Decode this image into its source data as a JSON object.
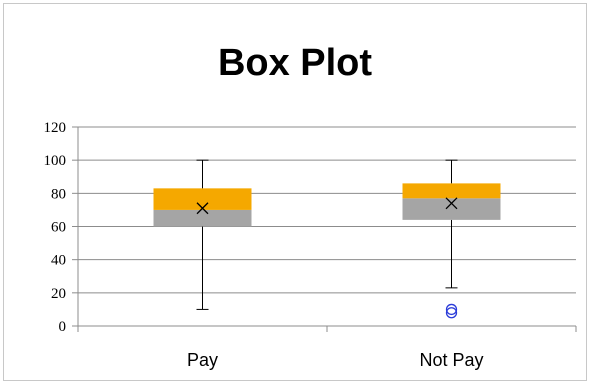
{
  "chart_data": {
    "type": "box",
    "title": "Box Plot",
    "xlabel": "",
    "ylabel": "",
    "ylim": [
      0,
      120
    ],
    "y_ticks": [
      "0",
      "20",
      "40",
      "60",
      "80",
      "100",
      "120"
    ],
    "grid": true,
    "legend": "none",
    "categories": [
      "Pay",
      "Not Pay"
    ],
    "boxes": [
      {
        "category": "Pay",
        "min": 10,
        "q1": 60,
        "median": 70,
        "q3": 83,
        "max": 100,
        "mean": 71,
        "outliers": []
      },
      {
        "category": "Not Pay",
        "min": 23,
        "q1": 64,
        "median": 77,
        "q3": 86,
        "max": 100,
        "mean": 74,
        "outliers": [
          10,
          8
        ]
      }
    ],
    "colors": {
      "lower_box": "#a5a5a5",
      "upper_box": "#f5a800",
      "whisker": "#000000",
      "mean_marker": "#000000",
      "outlier": "#2b3cd9",
      "grid": "#8c8c8c"
    },
    "mean_marker_symbol": "×",
    "outlier_marker_symbol": "o"
  }
}
